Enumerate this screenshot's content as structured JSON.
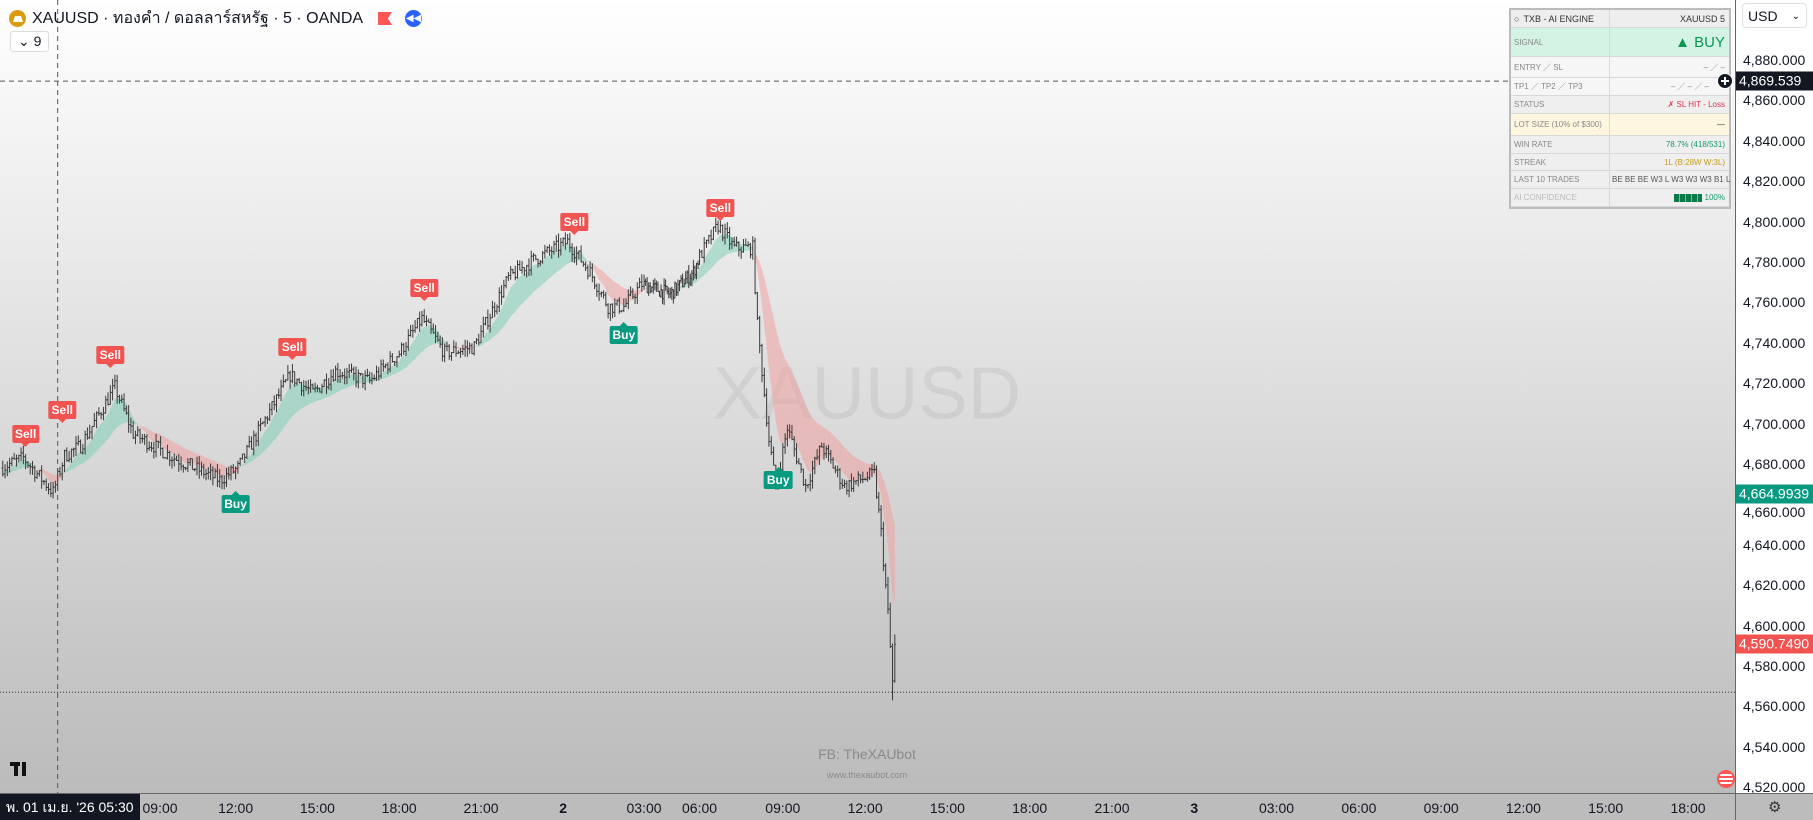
{
  "header": {
    "symbol_title": "XAUUSD · ทองคำ / ดอลลาร์สหรัฐ · 5 · OANDA",
    "indicators_count": "9",
    "icons": [
      "gold-coin-icon",
      "flag-icon",
      "rewind-icon"
    ]
  },
  "currency_select": {
    "value": "USD"
  },
  "panel": {
    "title": "TXB - AI  ENGINE",
    "symbol": "XAUUSD  5",
    "rows": [
      {
        "label": "SIGNAL",
        "value": "▲  BUY",
        "color": "#089950",
        "bg": "#d4f3e4"
      },
      {
        "label": "ENTRY  ／  SL",
        "value": "–  ／  –",
        "color": "#888888",
        "bg": "#f6f6f6"
      },
      {
        "label": "TP1  ／  TP2  ／  TP3",
        "value": "–  ／  –  ／  –",
        "color": "#888888",
        "bg": "#f6f6f6"
      },
      {
        "label": "STATUS",
        "value": "✗  SL HIT - Loss",
        "color": "#e0304e",
        "bg": "#efefef"
      },
      {
        "label": "LOT SIZE  (10% of $300)",
        "value": "—",
        "color": "#333333",
        "bg": "#fff6e0"
      },
      {
        "label": "WIN RATE",
        "value": "78.7%  (418/531)",
        "color": "#159a6a",
        "bg": "#efefef"
      },
      {
        "label": "STREAK",
        "value": "1L  (B:28W  W:3L)",
        "color": "#c59a1a",
        "bg": "#efefef"
      },
      {
        "label": "LAST 10 TRADES",
        "value": "BE BE BE W3 L W3 W3 W3 B1 L",
        "color": "#555555",
        "bg": "#efefef"
      },
      {
        "label": "AI CONFIDENCE",
        "value": "100%",
        "color": "#159a6a",
        "bg": "#efefef",
        "bar_fraction": 1.0
      }
    ]
  },
  "watermark": {
    "symbol": "XAUUSD",
    "fb": "FB: TheXAUbot",
    "site": "www.thexaubot.com"
  },
  "crosshair": {
    "date_label": "พ. 01 เม.ย. '26   05:30",
    "price_label": "4,869.539",
    "time": "1 05:30",
    "price": 4869.539
  },
  "price_labels": [
    {
      "text": "4,664.9939",
      "price": 4664.9939,
      "color": "#089981"
    },
    {
      "text": "4,590.7490",
      "price": 4590.749,
      "color": "#f05350"
    }
  ],
  "low_line_price": 4567,
  "chart_data": {
    "type": "candlestick",
    "symbol": "XAUUSD",
    "interval": "5",
    "ylim": [
      4514,
      4894
    ],
    "y_ticks": [
      "4,880.000",
      "4,860.000",
      "4,840.000",
      "4,820.000",
      "4,800.000",
      "4,780.000",
      "4,760.000",
      "4,740.000",
      "4,720.000",
      "4,700.000",
      "4,680.000",
      "4,660.000",
      "4,640.000",
      "4,620.000",
      "4,600.000",
      "4,580.000",
      "4,560.000",
      "4,540.000",
      "4,520.000"
    ],
    "x_ticks": [
      {
        "label": "09:00",
        "t": "1 09:00"
      },
      {
        "label": "12:00",
        "t": "1 12:00"
      },
      {
        "label": "15:00",
        "t": "1 15:00"
      },
      {
        "label": "18:00",
        "t": "1 18:00"
      },
      {
        "label": "21:00",
        "t": "1 21:00"
      },
      {
        "label": "2",
        "t": "2 00:00",
        "day": true
      },
      {
        "label": "03:00",
        "t": "2 03:00"
      },
      {
        "label": "06:00",
        "t": "2 06:00"
      },
      {
        "label": "09:00",
        "t": "2 09:00"
      },
      {
        "label": "12:00",
        "t": "2 12:00"
      },
      {
        "label": "15:00",
        "t": "2 15:00"
      },
      {
        "label": "18:00",
        "t": "2 18:00"
      },
      {
        "label": "21:00",
        "t": "2 21:00"
      },
      {
        "label": "3",
        "t": "3 00:00",
        "day": true
      },
      {
        "label": "03:00",
        "t": "3 03:00"
      },
      {
        "label": "06:00",
        "t": "3 06:00"
      },
      {
        "label": "09:00",
        "t": "3 09:00"
      },
      {
        "label": "12:00",
        "t": "3 12:00"
      },
      {
        "label": "15:00",
        "t": "3 15:00"
      },
      {
        "label": "18:00",
        "t": "3 18:00"
      }
    ],
    "price_path": [
      [
        "1 03:25",
        4678
      ],
      [
        "1 04:15",
        4683
      ],
      [
        "1 05:20",
        4666
      ],
      [
        "1 05:45",
        4684
      ],
      [
        "1 06:20",
        4689
      ],
      [
        "1 07:35",
        4718
      ],
      [
        "1 08:15",
        4695
      ],
      [
        "1 09:45",
        4683
      ],
      [
        "1 11:25",
        4672
      ],
      [
        "1 12:05",
        4678
      ],
      [
        "1 13:10",
        4704
      ],
      [
        "1 14:00",
        4724
      ],
      [
        "1 14:50",
        4715
      ],
      [
        "1 15:40",
        4726
      ],
      [
        "1 16:55",
        4721
      ],
      [
        "1 18:00",
        4735
      ],
      [
        "1 18:50",
        4752
      ],
      [
        "1 19:40",
        4735
      ],
      [
        "1 20:45",
        4738
      ],
      [
        "1 22:00",
        4772
      ],
      [
        "1 22:55",
        4781
      ],
      [
        "2 00:10",
        4790
      ],
      [
        "2 01:00",
        4775
      ],
      [
        "2 01:40",
        4758
      ],
      [
        "2 02:15",
        4758
      ],
      [
        "2 02:55",
        4769
      ],
      [
        "2 04:25",
        4764
      ],
      [
        "2 05:40",
        4775
      ],
      [
        "2 06:40",
        4798
      ],
      [
        "2 07:15",
        4787
      ],
      [
        "2 07:55",
        4787
      ],
      [
        "2 08:05",
        4749
      ],
      [
        "2 08:30",
        4692
      ],
      [
        "2 08:45",
        4669
      ],
      [
        "2 09:10",
        4698
      ],
      [
        "2 09:50",
        4669
      ],
      [
        "2 10:25",
        4689
      ],
      [
        "2 11:15",
        4669
      ],
      [
        "2 12:20",
        4675
      ],
      [
        "2 12:35",
        4646
      ],
      [
        "2 12:50",
        4606
      ],
      [
        "2 13:00",
        4572
      ],
      [
        "2 13:05",
        4590.749
      ]
    ],
    "signals": [
      {
        "type": "sell",
        "label": "Sell",
        "t": "1 04:20",
        "price": 4688
      },
      {
        "type": "sell",
        "label": "Sell",
        "t": "1 05:40",
        "price": 4700
      },
      {
        "type": "sell",
        "label": "Sell",
        "t": "1 07:25",
        "price": 4727
      },
      {
        "type": "buy",
        "label": "Buy",
        "t": "1 12:00",
        "price": 4668
      },
      {
        "type": "sell",
        "label": "Sell",
        "t": "1 14:05",
        "price": 4731
      },
      {
        "type": "sell",
        "label": "Sell",
        "t": "1 18:55",
        "price": 4760
      },
      {
        "type": "sell",
        "label": "Sell",
        "t": "2 00:25",
        "price": 4793
      },
      {
        "type": "buy",
        "label": "Buy",
        "t": "2 02:15",
        "price": 4752
      },
      {
        "type": "sell",
        "label": "Sell",
        "t": "2 06:45",
        "price": 4800
      },
      {
        "type": "buy",
        "label": "Buy",
        "t": "2 08:50",
        "price": 4680
      }
    ],
    "colors": {
      "candle": "#3a3a3a",
      "band_up": "#7fcfb8",
      "band_down": "#f2a0a0"
    }
  }
}
